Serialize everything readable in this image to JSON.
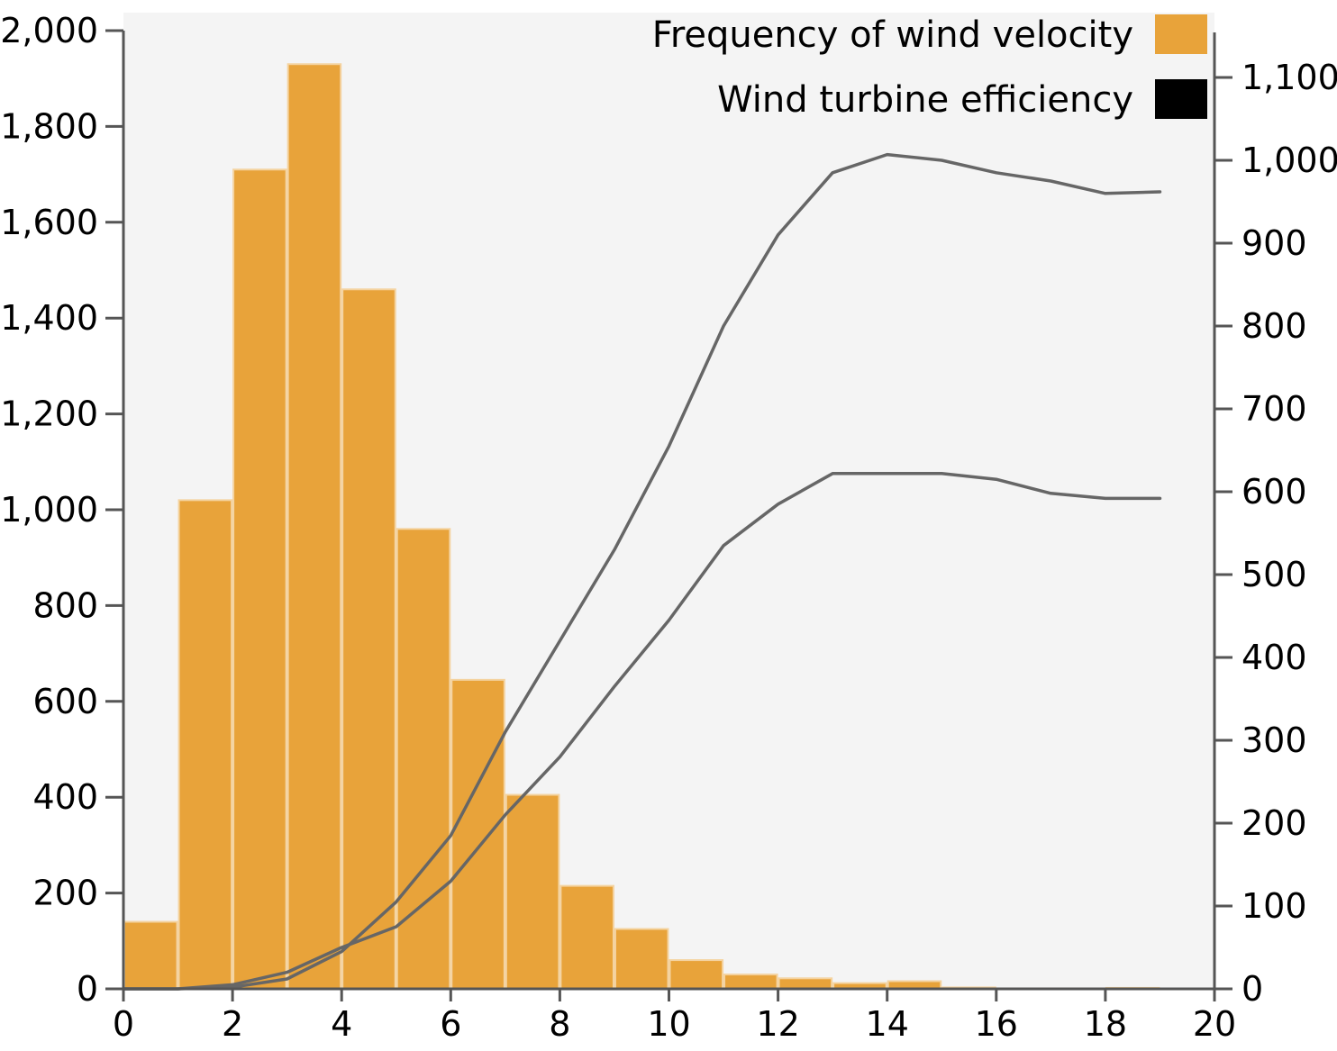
{
  "chart_data": {
    "type": "bar",
    "bar_color": "#e8a33a",
    "bar_edge_color": "#f4d3a0",
    "line_color": "#666666",
    "plot_background": "#f4f4f4",
    "grid": false,
    "legend_placement": "top-right",
    "legend": [
      {
        "label": "Frequency of wind velocity",
        "color": "#e8a33a"
      },
      {
        "label": "Wind turbine efficiency",
        "color": "#000000"
      }
    ],
    "bins": {
      "x_start": [
        0,
        1,
        2,
        3,
        4,
        5,
        6,
        7,
        8,
        9,
        10,
        11,
        12,
        13,
        14,
        15,
        16,
        17,
        18
      ],
      "width": 1,
      "values": [
        140,
        1020,
        1710,
        1930,
        1460,
        960,
        645,
        405,
        215,
        125,
        60,
        30,
        22,
        12,
        16,
        3,
        1,
        1,
        2
      ]
    },
    "lines": [
      {
        "x": [
          0,
          1,
          2,
          3,
          4,
          5,
          6,
          7,
          8,
          9,
          10,
          11,
          12,
          13,
          14,
          15,
          16,
          17,
          18,
          19
        ],
        "y": [
          0,
          0,
          2,
          12,
          45,
          105,
          185,
          310,
          420,
          530,
          655,
          800,
          910,
          985,
          1007,
          1000,
          985,
          975,
          960,
          962
        ]
      },
      {
        "x": [
          0,
          1,
          2,
          3,
          4,
          5,
          6,
          7,
          8,
          9,
          10,
          11,
          12,
          13,
          14,
          15,
          16,
          17,
          18,
          19
        ],
        "y": [
          0,
          0,
          5,
          20,
          50,
          75,
          130,
          210,
          280,
          365,
          445,
          535,
          585,
          622,
          622,
          622,
          615,
          598,
          592,
          592
        ]
      }
    ],
    "x_axis": {
      "range": [
        0,
        20
      ],
      "ticks": [
        0,
        2,
        4,
        6,
        8,
        10,
        12,
        14,
        16,
        18,
        20
      ],
      "tick_labels": [
        "0",
        "2",
        "4",
        "6",
        "8",
        "10",
        "12",
        "14",
        "16",
        "18",
        "20"
      ]
    },
    "y_left_axis": {
      "range": [
        0,
        2000
      ],
      "ticks": [
        0,
        200,
        400,
        600,
        800,
        1000,
        1200,
        1400,
        1600,
        1800,
        2000
      ],
      "tick_labels": [
        "0",
        "200",
        "400",
        "600",
        "800",
        "1,000",
        "1,200",
        "1,400",
        "1,600",
        "1,800",
        "2,000"
      ]
    },
    "y_right_axis": {
      "range": [
        0,
        1150
      ],
      "ticks": [
        0,
        100,
        200,
        300,
        400,
        500,
        600,
        700,
        800,
        900,
        1000,
        1100
      ],
      "tick_labels": [
        "0",
        "100",
        "200",
        "300",
        "400",
        "500",
        "600",
        "700",
        "800",
        "900",
        "1,000",
        "1,100"
      ]
    }
  }
}
